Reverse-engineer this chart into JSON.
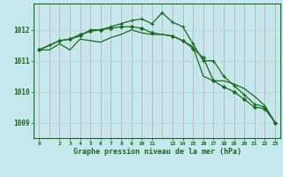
{
  "title": "Graphe pression niveau de la mer (hPa)",
  "background_color": "#c5e8ee",
  "vgrid_color": "#d4aaaa",
  "hgrid_color": "#b8d8d8",
  "line_color": "#1a6b1a",
  "xlim": [
    -0.5,
    23.5
  ],
  "ylim": [
    1008.5,
    1012.85
  ],
  "yticks": [
    1009,
    1010,
    1011,
    1012
  ],
  "xticks": [
    0,
    2,
    3,
    4,
    5,
    6,
    7,
    8,
    9,
    10,
    11,
    13,
    14,
    15,
    16,
    17,
    18,
    19,
    20,
    21,
    22,
    23
  ],
  "line1_x": [
    0,
    1,
    2,
    3,
    4,
    5,
    6,
    7,
    8,
    9,
    10,
    11,
    12,
    13,
    14,
    15,
    16,
    17,
    18,
    19,
    20,
    21,
    22,
    23
  ],
  "line1_y": [
    1011.35,
    1011.35,
    1011.55,
    1011.35,
    1011.7,
    1011.65,
    1011.6,
    1011.75,
    1011.85,
    1012.0,
    1011.9,
    1011.85,
    1011.85,
    1011.8,
    1011.65,
    1011.45,
    1010.5,
    1010.35,
    1010.35,
    1010.25,
    1010.1,
    1009.85,
    1009.55,
    1009.0
  ],
  "line2_x": [
    0,
    1,
    2,
    3,
    4,
    5,
    6,
    7,
    8,
    9,
    10,
    11,
    12,
    13,
    14,
    15,
    16,
    17,
    18,
    19,
    20,
    21,
    22,
    23
  ],
  "line2_y": [
    1011.35,
    1011.5,
    1011.65,
    1011.7,
    1011.8,
    1012.0,
    1012.0,
    1012.1,
    1012.2,
    1012.3,
    1012.35,
    1012.2,
    1012.55,
    1012.25,
    1012.1,
    1011.55,
    1011.0,
    1011.0,
    1010.5,
    1010.2,
    1009.9,
    1009.6,
    1009.5,
    1009.0
  ],
  "line3_x": [
    0,
    2,
    3,
    4,
    5,
    6,
    7,
    8,
    9,
    10,
    11,
    13,
    14,
    15,
    16,
    17,
    18,
    19,
    20,
    21,
    22,
    23
  ],
  "line3_y": [
    1011.35,
    1011.65,
    1011.7,
    1011.85,
    1011.95,
    1012.0,
    1012.05,
    1012.1,
    1012.1,
    1012.05,
    1011.9,
    1011.8,
    1011.65,
    1011.4,
    1011.1,
    1010.35,
    1010.15,
    1010.0,
    1009.75,
    1009.5,
    1009.45,
    1009.0
  ]
}
